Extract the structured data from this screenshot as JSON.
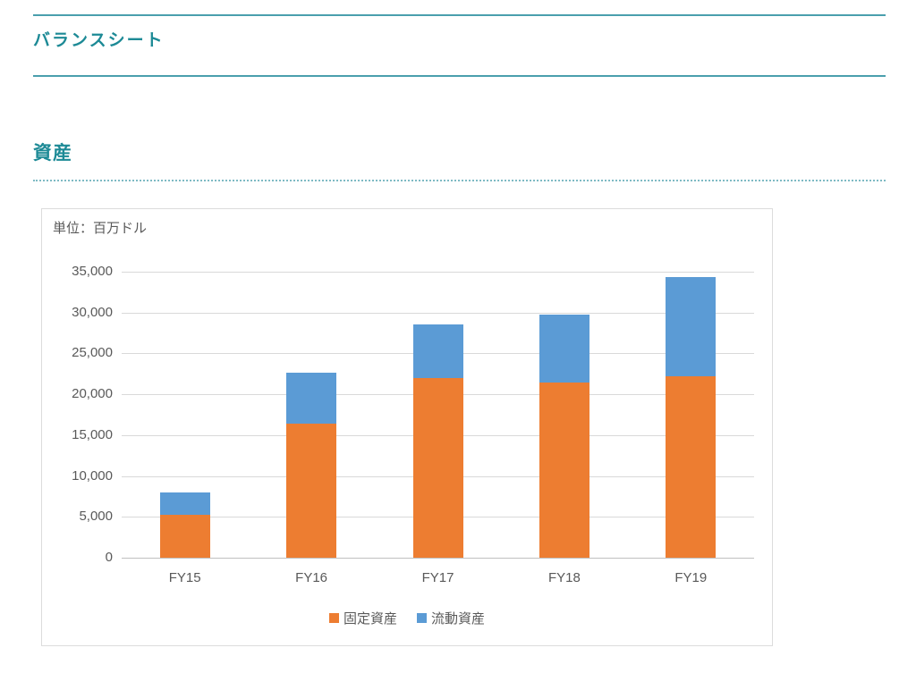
{
  "page": {
    "section_title": "バランスシート",
    "subsection_title": "資産"
  },
  "colors": {
    "heading_teal": "#1d8a96",
    "rule_teal": "#4a9fad",
    "fixed_assets_orange": "#ED7D31",
    "current_assets_blue": "#5B9BD5",
    "axis_text_gray": "#595959",
    "gridline_gray": "#d9d9d9"
  },
  "chart_data": {
    "type": "bar",
    "stacked": true,
    "title": "資産",
    "unit_label": "単位：百万ドル",
    "categories": [
      "FY15",
      "FY16",
      "FY17",
      "FY18",
      "FY19"
    ],
    "series": [
      {
        "key": "fixed-assets",
        "name": "固定資産",
        "color": "#ED7D31",
        "values": [
          5200,
          16400,
          22000,
          21400,
          22200
        ]
      },
      {
        "key": "current-assets",
        "name": "流動資産",
        "color": "#5B9BD5",
        "values": [
          2800,
          6200,
          6500,
          8400,
          12100
        ]
      }
    ],
    "totals": [
      8000,
      22600,
      28500,
      29800,
      34300
    ],
    "ylim": [
      0,
      35000
    ],
    "ytick_step": 5000,
    "ytick_labels": [
      "0",
      "5,000",
      "10,000",
      "15,000",
      "20,000",
      "25,000",
      "30,000",
      "35,000"
    ],
    "grid": true,
    "legend_position": "bottom"
  }
}
